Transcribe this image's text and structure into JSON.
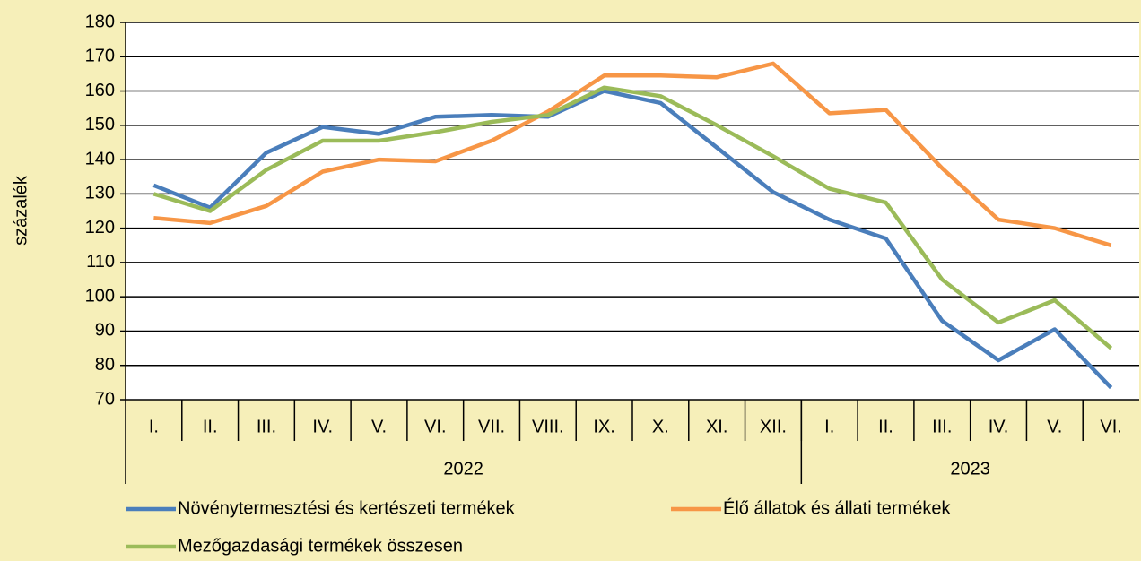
{
  "chart_data": {
    "type": "line",
    "y_label": "százalék",
    "categories": [
      "I.",
      "II.",
      "III.",
      "IV.",
      "V.",
      "VI.",
      "VII.",
      "VIII.",
      "IX.",
      "X.",
      "XI.",
      "XII.",
      "I.",
      "II.",
      "III.",
      "IV.",
      "V.",
      "VI."
    ],
    "category_groups": [
      {
        "name": "2022",
        "count": 12
      },
      {
        "name": "2023",
        "count": 6
      }
    ],
    "series": [
      {
        "name": "Növénytermesztési és kertészeti termékek",
        "color": "#4a7ebb",
        "values": [
          132.5,
          126,
          142,
          149.5,
          147.5,
          152.5,
          153,
          152.5,
          160,
          156.5,
          143.5,
          130.5,
          122.5,
          117,
          93,
          81.5,
          90.5,
          73.5
        ]
      },
      {
        "name": "Élő állatok és állati termékek",
        "color": "#f79646",
        "values": [
          123,
          121.5,
          126.5,
          136.5,
          140,
          139.5,
          145.5,
          154,
          164.5,
          164.5,
          164,
          168,
          153.5,
          154.5,
          137.5,
          122.5,
          120,
          115
        ]
      },
      {
        "name": "Mezőgazdasági termékek összesen",
        "color": "#9bbb59",
        "values": [
          130,
          125,
          137,
          145.5,
          145.5,
          148,
          151,
          153,
          161,
          158.5,
          150,
          141,
          131.5,
          127.5,
          105,
          92.5,
          99,
          85
        ]
      }
    ],
    "ylim": [
      70,
      180
    ],
    "yticks": [
      70,
      80,
      90,
      100,
      110,
      120,
      130,
      140,
      150,
      160,
      170,
      180
    ],
    "grid": true
  }
}
